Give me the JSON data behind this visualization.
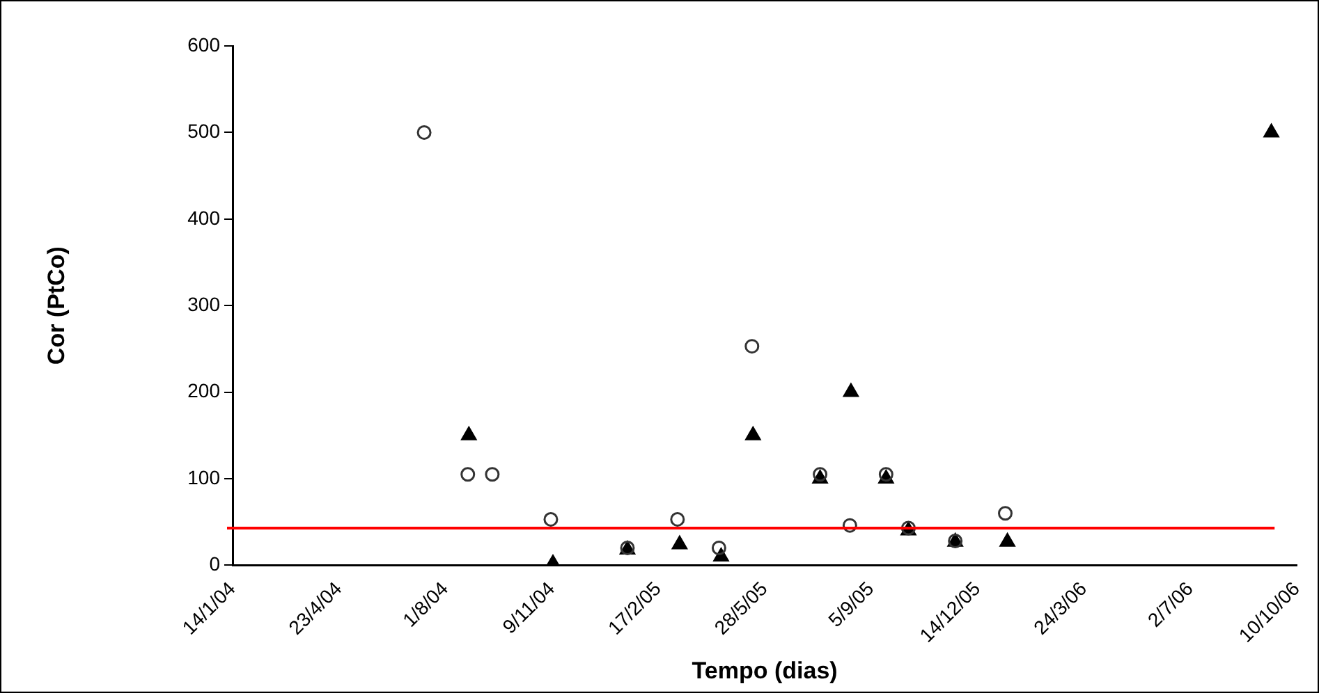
{
  "chart_data": {
    "type": "scatter",
    "xlabel": "Tempo (dias)",
    "ylabel": "Cor (PtCo)",
    "xlim": [
      "2004-01-14",
      "2006-10-10"
    ],
    "xticks": [
      {
        "value": "2004-01-14",
        "label": "14/1/04"
      },
      {
        "value": "2004-04-23",
        "label": "23/4/04"
      },
      {
        "value": "2004-08-01",
        "label": "1/8/04"
      },
      {
        "value": "2004-11-09",
        "label": "9/11/04"
      },
      {
        "value": "2005-02-17",
        "label": "17/2/05"
      },
      {
        "value": "2005-05-28",
        "label": "28/5/05"
      },
      {
        "value": "2005-09-05",
        "label": "5/9/05"
      },
      {
        "value": "2005-12-14",
        "label": "14/12/05"
      },
      {
        "value": "2006-03-24",
        "label": "24/3/06"
      },
      {
        "value": "2006-07-02",
        "label": "2/7/06"
      },
      {
        "value": "2006-10-10",
        "label": "10/10/06"
      }
    ],
    "ylim": [
      0,
      600
    ],
    "yticks": [
      0,
      100,
      200,
      300,
      400,
      500,
      600
    ],
    "grid": false,
    "legend": false,
    "series": [
      {
        "color": "#333333",
        "marker": "circle",
        "x": [
          "2004-07-12",
          "2004-08-22",
          "2004-09-14",
          "2004-11-08",
          "2005-01-19",
          "2005-03-07",
          "2005-04-15",
          "2005-05-16",
          "2005-07-19",
          "2005-08-16",
          "2005-09-19",
          "2005-10-10",
          "2005-11-23",
          "2006-01-09"
        ],
        "values": [
          500,
          105,
          105,
          53,
          20,
          53,
          20,
          253,
          105,
          46,
          105,
          43,
          28,
          60
        ]
      },
      {
        "color": "#000000",
        "marker": "triangle",
        "x": [
          "2004-08-23",
          "2004-11-10",
          "2005-01-19",
          "2005-03-09",
          "2005-04-17",
          "2005-05-17",
          "2005-07-19",
          "2005-08-17",
          "2005-09-19",
          "2005-10-10",
          "2005-11-23",
          "2006-01-11",
          "2006-09-16"
        ],
        "values": [
          150,
          2,
          18,
          24,
          10,
          150,
          100,
          200,
          100,
          40,
          27,
          27,
          500
        ]
      }
    ],
    "ref_lines": [
      {
        "axis": "y",
        "value": 43,
        "color": "#ff0000",
        "line_style": "solid"
      }
    ]
  }
}
